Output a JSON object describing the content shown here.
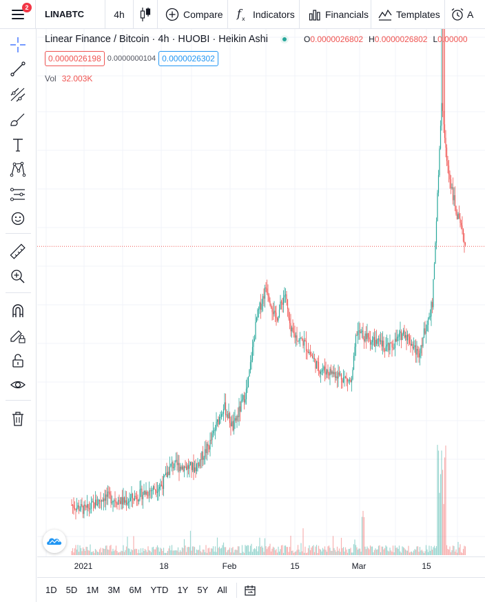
{
  "toolbar": {
    "menu_badge": "2",
    "symbol": "LINABTC",
    "interval": "4h",
    "compare": "Compare",
    "indicators": "Indicators",
    "financials": "Financials",
    "templates": "Templates",
    "alert_partial": "A"
  },
  "left_tools": [
    "crosshair-icon",
    "trend-line-icon",
    "pitchfork-icon",
    "brush-icon",
    "text-icon",
    "pattern-icon",
    "prediction-icon",
    "emoji-icon",
    "ruler-icon",
    "zoom-in-icon",
    "magnet-icon",
    "lock-drawing-icon",
    "unlock-icon",
    "eye-icon",
    "trash-icon"
  ],
  "legend": {
    "title": "Linear Finance / Bitcoin · 4h · HUOBI · Heikin Ashi",
    "o_label": "O",
    "o_value": "0.0000026802",
    "h_label": "H",
    "h_value": "0.0000026802",
    "l_label": "L",
    "l_value": "0.00000",
    "bid": "0.0000026198",
    "spread": "0.0000000104",
    "ask": "0.0000026302",
    "vol_label": "Vol",
    "vol_value": "32.003K"
  },
  "time_axis": [
    "2021",
    "18",
    "Feb",
    "15",
    "Mar",
    "15"
  ],
  "ranges": [
    "1D",
    "5D",
    "1M",
    "3M",
    "6M",
    "YTD",
    "1Y",
    "5Y",
    "All"
  ],
  "colors": {
    "up": "#26a69a",
    "down": "#ef5350",
    "grid": "#f0f3fa",
    "price_line": "#ef5350"
  },
  "chart_data": {
    "type": "candlestick",
    "series": [
      {
        "name": "",
        "style": "heikin-ashi",
        "points": [
          {
            "x": "2021-01-01",
            "y": 17
          },
          {
            "x": "2021-01-04",
            "y": 15
          },
          {
            "x": "2021-01-08",
            "y": 20
          },
          {
            "x": "2021-01-12",
            "y": 18
          },
          {
            "x": "2021-01-16",
            "y": 21
          },
          {
            "x": "2021-01-20",
            "y": 24
          },
          {
            "x": "2021-01-22",
            "y": 31
          },
          {
            "x": "2021-01-27",
            "y": 30
          },
          {
            "x": "2021-01-30",
            "y": 38
          },
          {
            "x": "2021-02-02",
            "y": 52
          },
          {
            "x": "2021-02-04",
            "y": 44
          },
          {
            "x": "2021-02-07",
            "y": 58
          },
          {
            "x": "2021-02-09",
            "y": 83
          },
          {
            "x": "2021-02-11",
            "y": 94
          },
          {
            "x": "2021-02-13",
            "y": 82
          },
          {
            "x": "2021-02-15",
            "y": 92
          },
          {
            "x": "2021-02-16",
            "y": 78
          },
          {
            "x": "2021-02-19",
            "y": 74
          },
          {
            "x": "2021-02-22",
            "y": 65
          },
          {
            "x": "2021-02-26",
            "y": 63
          },
          {
            "x": "2021-03-01",
            "y": 60
          },
          {
            "x": "2021-03-02",
            "y": 78
          },
          {
            "x": "2021-03-05",
            "y": 75
          },
          {
            "x": "2021-03-09",
            "y": 72
          },
          {
            "x": "2021-03-12",
            "y": 78
          },
          {
            "x": "2021-03-15",
            "y": 70
          },
          {
            "x": "2021-03-18",
            "y": 88
          },
          {
            "x": "2021-03-20",
            "y": 160
          },
          {
            "x": "2021-03-21",
            "y": 138
          },
          {
            "x": "2021-03-23",
            "y": 120
          },
          {
            "x": "2021-03-25",
            "y": 108
          }
        ]
      }
    ],
    "volume_max_k": 800,
    "grid": true,
    "current_price_line": true
  }
}
